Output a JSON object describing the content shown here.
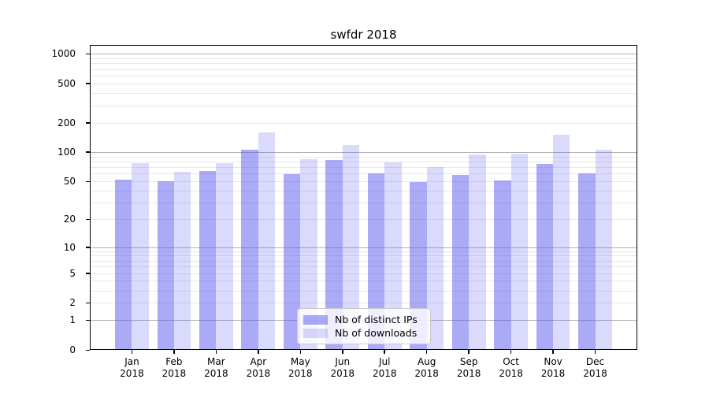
{
  "figure": {
    "background": "#ffffff"
  },
  "chart_data": {
    "type": "bar",
    "title": "swfdr 2018",
    "categories": [
      "Jan 2018",
      "Feb 2018",
      "Mar 2018",
      "Apr 2018",
      "May 2018",
      "Jun 2018",
      "Jul 2018",
      "Aug 2018",
      "Sep 2018",
      "Oct 2018",
      "Nov 2018",
      "Dec 2018"
    ],
    "x_tick_labels": [
      {
        "month": "Jan",
        "year": "2018"
      },
      {
        "month": "Feb",
        "year": "2018"
      },
      {
        "month": "Mar",
        "year": "2018"
      },
      {
        "month": "Apr",
        "year": "2018"
      },
      {
        "month": "May",
        "year": "2018"
      },
      {
        "month": "Jun",
        "year": "2018"
      },
      {
        "month": "Jul",
        "year": "2018"
      },
      {
        "month": "Aug",
        "year": "2018"
      },
      {
        "month": "Sep",
        "year": "2018"
      },
      {
        "month": "Oct",
        "year": "2018"
      },
      {
        "month": "Nov",
        "year": "2018"
      },
      {
        "month": "Dec",
        "year": "2018"
      }
    ],
    "series": [
      {
        "name": "Nb of distinct IPs",
        "color": "rgba(85,85,240,0.5)",
        "values": [
          52,
          50,
          64,
          105,
          59,
          83,
          60,
          49,
          58,
          51,
          76,
          61
        ]
      },
      {
        "name": "Nb of downloads",
        "color": "rgba(85,85,240,0.22)",
        "values": [
          77,
          63,
          77,
          160,
          85,
          119,
          78,
          70,
          95,
          97,
          150,
          106
        ]
      }
    ],
    "y_scale": "log10(1+y)",
    "ylim": [
      0,
      1230
    ],
    "y_tick_values": [
      0,
      1,
      2,
      5,
      10,
      20,
      50,
      100,
      200,
      500,
      1000
    ],
    "y_tick_labels": [
      "0",
      "1",
      "2",
      "5",
      "10",
      "20",
      "50",
      "100",
      "200",
      "500",
      "1000"
    ],
    "y_major_gridlines": [
      1,
      10,
      100,
      1000
    ],
    "y_minor_gridlines": [
      2,
      3,
      4,
      5,
      6,
      7,
      8,
      9,
      20,
      30,
      40,
      50,
      60,
      70,
      80,
      90,
      200,
      300,
      400,
      500,
      600,
      700,
      800,
      900
    ],
    "grid": "on",
    "legend_position": "lower center",
    "colors": {
      "major_grid": "#b2b2b2",
      "minor_grid": "#e8e8e8",
      "frame": "#000000"
    }
  }
}
